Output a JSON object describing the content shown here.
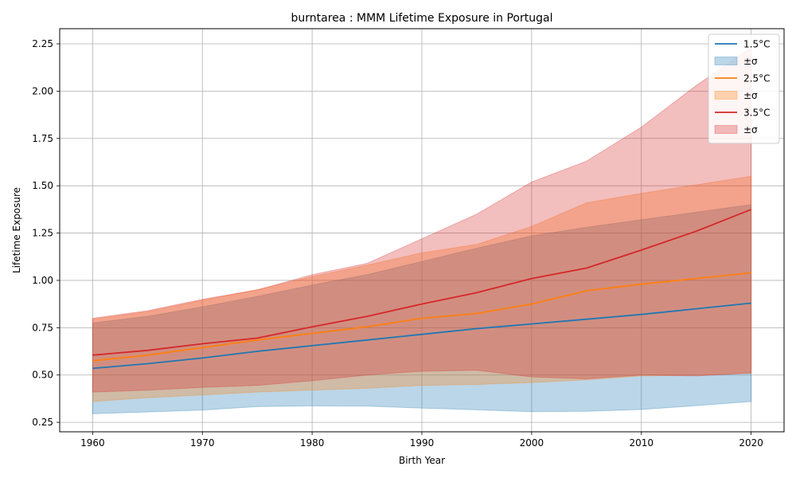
{
  "chart_data": {
    "type": "line",
    "title": "burntarea : MMM Lifetime Exposure in Portugal",
    "xlabel": "Birth Year",
    "ylabel": "Lifetime Exposure",
    "xlim": [
      1957,
      2023
    ],
    "ylim": [
      0.2,
      2.33
    ],
    "xticks": [
      1960,
      1970,
      1980,
      1990,
      2000,
      2010,
      2020
    ],
    "yticks": [
      0.25,
      0.5,
      0.75,
      1.0,
      1.25,
      1.5,
      1.75,
      2.0,
      2.25
    ],
    "ytick_labels": [
      "0.25",
      "0.50",
      "0.75",
      "1.00",
      "1.25",
      "1.50",
      "1.75",
      "2.00",
      "2.25"
    ],
    "grid": true,
    "legend_position": "top-right",
    "x": [
      1960,
      1965,
      1970,
      1975,
      1980,
      1985,
      1990,
      1995,
      2000,
      2005,
      2010,
      2015,
      2020
    ],
    "series": [
      {
        "name": "1.5°C",
        "band_name": "±σ",
        "color": "#1f77b4",
        "band_color": "#a6c8e6",
        "mean": [
          0.535,
          0.56,
          0.59,
          0.625,
          0.655,
          0.685,
          0.715,
          0.745,
          0.77,
          0.795,
          0.82,
          0.85,
          0.88
        ],
        "lower": [
          0.295,
          0.305,
          0.315,
          0.333,
          0.337,
          0.336,
          0.325,
          0.316,
          0.306,
          0.308,
          0.318,
          0.338,
          0.36
        ],
        "upper": [
          0.775,
          0.81,
          0.86,
          0.915,
          0.975,
          1.03,
          1.1,
          1.17,
          1.235,
          1.28,
          1.32,
          1.36,
          1.4
        ]
      },
      {
        "name": "2.5°C",
        "band_name": "±σ",
        "color": "#ff7f0e",
        "band_color": "#ffc08a",
        "mean": [
          0.575,
          0.605,
          0.645,
          0.685,
          0.72,
          0.755,
          0.8,
          0.825,
          0.875,
          0.945,
          0.98,
          1.01,
          1.04
        ],
        "lower": [
          0.36,
          0.38,
          0.395,
          0.41,
          0.42,
          0.43,
          0.445,
          0.45,
          0.46,
          0.475,
          0.495,
          0.5,
          0.51
        ],
        "upper": [
          0.795,
          0.835,
          0.895,
          0.95,
          1.02,
          1.08,
          1.145,
          1.19,
          1.285,
          1.41,
          1.46,
          1.505,
          1.55
        ]
      },
      {
        "name": "3.5°C",
        "band_name": "±σ",
        "color": "#d62728",
        "band_color": "#eba5a6",
        "mean": [
          0.605,
          0.63,
          0.665,
          0.695,
          0.755,
          0.81,
          0.875,
          0.935,
          1.01,
          1.065,
          1.16,
          1.26,
          1.375
        ],
        "lower": [
          0.41,
          0.42,
          0.435,
          0.445,
          0.47,
          0.5,
          0.52,
          0.525,
          0.49,
          0.48,
          0.5,
          0.495,
          0.51
        ],
        "upper": [
          0.8,
          0.84,
          0.9,
          0.95,
          1.03,
          1.09,
          1.22,
          1.35,
          1.52,
          1.63,
          1.81,
          2.03,
          2.23
        ]
      }
    ]
  }
}
